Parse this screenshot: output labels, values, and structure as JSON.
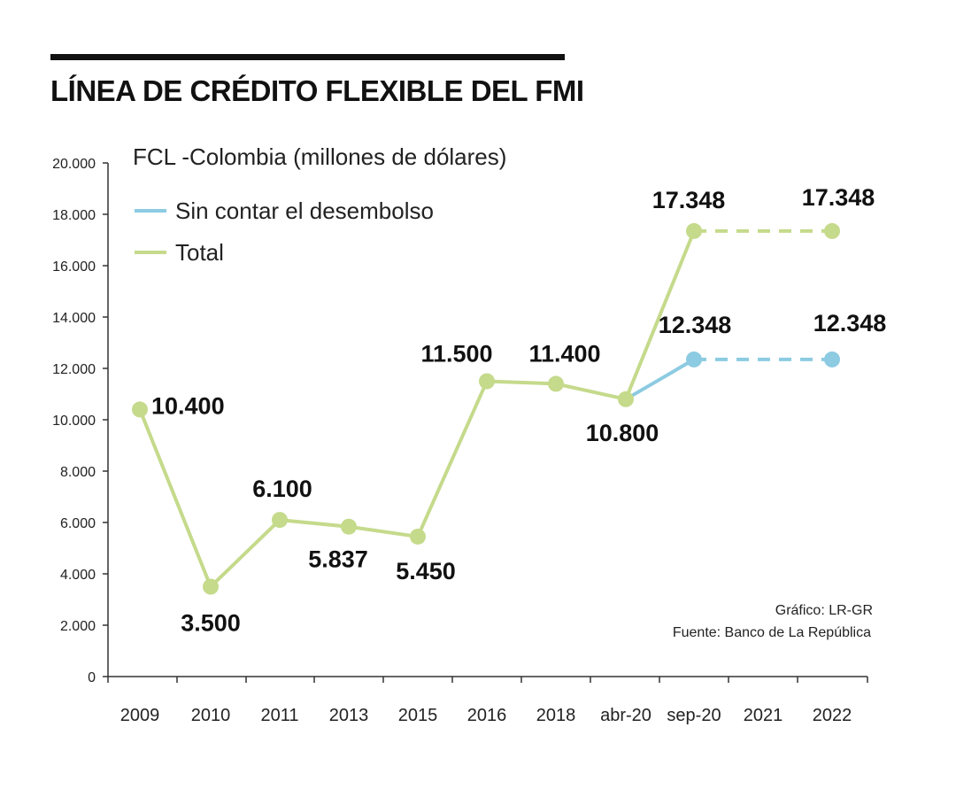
{
  "header": {
    "title": "LÍNEA DE CRÉDITO FLEXIBLE DEL FMI"
  },
  "notes": {
    "credit": "Gráfico: LR-GR",
    "source": "Fuente: Banco de La República"
  },
  "colors": {
    "total": "#c5da8b",
    "sin_desembolso": "#8ccbe1",
    "axis": "#333333",
    "text": "#111111"
  },
  "chart_data": {
    "type": "line",
    "title": "FCL -Colombia (millones de dólares)",
    "xlabel": "",
    "ylabel": "",
    "ylim": [
      0,
      20000
    ],
    "yticks": [
      0,
      2000,
      4000,
      6000,
      8000,
      10000,
      12000,
      14000,
      16000,
      18000,
      20000
    ],
    "ytick_labels": [
      "0",
      "2.000",
      "4.000",
      "6.000",
      "8.000",
      "10.000",
      "12.000",
      "14.000",
      "16.000",
      "18.000",
      "20.000"
    ],
    "categories": [
      "2009",
      "2010",
      "2011",
      "2013",
      "2015",
      "2016",
      "2018",
      "abr-20",
      "sep-20",
      "2021",
      "2022"
    ],
    "legend_position": "top-left",
    "series": [
      {
        "name": "Sin contar el desembolso",
        "color": "#8ccbe1",
        "points": [
          {
            "category": "abr-20",
            "value": 10800
          },
          {
            "category": "sep-20",
            "value": 12348,
            "label": "12.348"
          },
          {
            "category": "2022",
            "value": 12348,
            "label": "12.348"
          }
        ],
        "dashed_from": "sep-20"
      },
      {
        "name": "Total",
        "color": "#c5da8b",
        "points": [
          {
            "category": "2009",
            "value": 10400,
            "label": "10.400"
          },
          {
            "category": "2010",
            "value": 3500,
            "label": "3.500"
          },
          {
            "category": "2011",
            "value": 6100,
            "label": "6.100"
          },
          {
            "category": "2013",
            "value": 5837,
            "label": "5.837"
          },
          {
            "category": "2015",
            "value": 5450,
            "label": "5.450"
          },
          {
            "category": "2016",
            "value": 11500,
            "label": "11.500"
          },
          {
            "category": "2018",
            "value": 11400,
            "label": "11.400"
          },
          {
            "category": "abr-20",
            "value": 10800,
            "label": "10.800"
          },
          {
            "category": "sep-20",
            "value": 17348,
            "label": "17.348"
          },
          {
            "category": "2022",
            "value": 17348,
            "label": "17.348"
          }
        ],
        "dashed_from": "sep-20"
      }
    ]
  }
}
